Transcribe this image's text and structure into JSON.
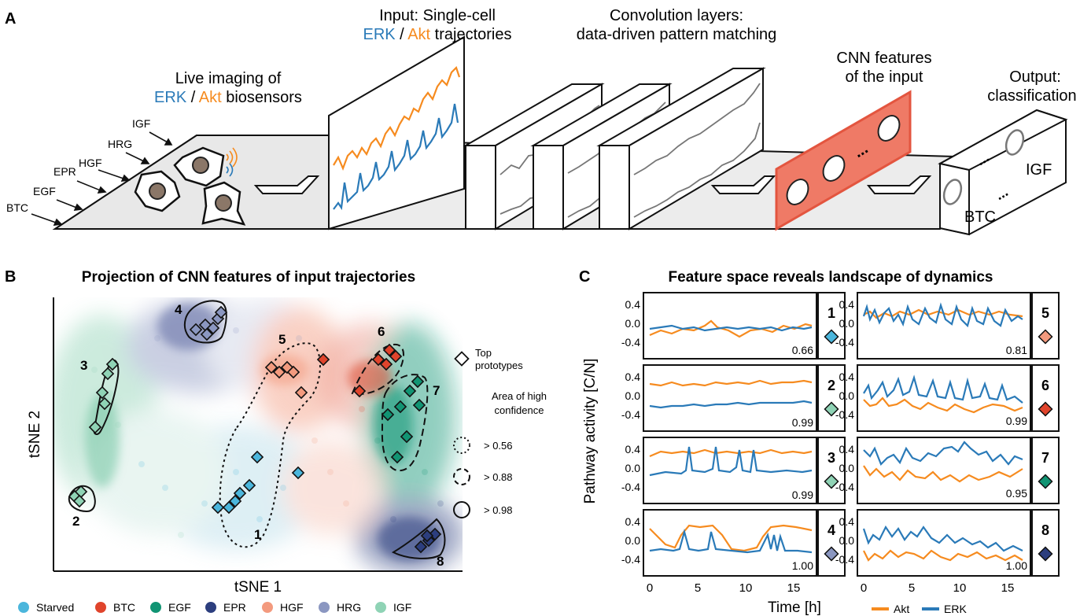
{
  "panel_a": {
    "letter": "A",
    "live_imaging": {
      "line1": "Live imaging of",
      "erk": "ERK",
      "sep": " / ",
      "akt": "Akt",
      "rest": " biosensors"
    },
    "ligands": [
      "IGF",
      "HRG",
      "HGF",
      "EPR",
      "EGF",
      "BTC"
    ],
    "input": {
      "line1": "Input: Single-cell",
      "erk": "ERK",
      "sep": " / ",
      "akt": "Akt",
      "rest": " trajectories"
    },
    "conv": {
      "line1": "Convolution layers:",
      "line2": "data-driven pattern matching"
    },
    "features": {
      "line1": "CNN features",
      "line2": "of the input",
      "dots": "..."
    },
    "output": {
      "line1": "Output:",
      "line2": "classification",
      "igf": "IGF",
      "btc": "BTC",
      "dots": "..."
    }
  },
  "panel_b": {
    "letter": "B",
    "title": "Projection of CNN features of input trajectories",
    "xlabel": "tSNE 1",
    "ylabel": "tSNE 2",
    "cluster_labels": [
      "1",
      "2",
      "3",
      "4",
      "5",
      "6",
      "7",
      "8"
    ],
    "legend": {
      "top": "Top",
      "prototypes": "prototypes",
      "area1": "Area of high",
      "area2": "confidence",
      "levels": [
        "> 0.56",
        "> 0.88",
        "> 0.98"
      ]
    },
    "classes": [
      {
        "name": "Starved",
        "color": "#4bb6dc"
      },
      {
        "name": "BTC",
        "color": "#e0442c"
      },
      {
        "name": "EGF",
        "color": "#119473"
      },
      {
        "name": "EPR",
        "color": "#2c3e7e"
      },
      {
        "name": "HGF",
        "color": "#f39a7e"
      },
      {
        "name": "HRG",
        "color": "#8b97c1"
      },
      {
        "name": "IGF",
        "color": "#8fd3b5"
      }
    ]
  },
  "panel_c": {
    "letter": "C",
    "title": "Feature space reveals landscape of dynamics",
    "ylabel": "Pathway activity [C/N]",
    "xlabel": "Time [h]",
    "yticks": [
      "0.4",
      "0.0",
      "-0.4"
    ],
    "xticks": [
      "0",
      "5",
      "10",
      "15"
    ],
    "legend": [
      "Akt",
      "ERK"
    ],
    "colors": {
      "akt": "#f68b1f",
      "erk": "#2a7ab8"
    },
    "panels": [
      {
        "id": "1",
        "score": "0.66",
        "color": "#4bb6dc"
      },
      {
        "id": "2",
        "score": "0.99",
        "color": "#8fd3b5"
      },
      {
        "id": "3",
        "score": "0.99",
        "color": "#8fd3b5"
      },
      {
        "id": "4",
        "score": "1.00",
        "color": "#8b97c1"
      },
      {
        "id": "5",
        "score": "0.81",
        "color": "#f39a7e"
      },
      {
        "id": "6",
        "score": "0.99",
        "color": "#e0442c"
      },
      {
        "id": "7",
        "score": "0.95",
        "color": "#119473"
      },
      {
        "id": "8",
        "score": "1.00",
        "color": "#2c3e7e"
      }
    ]
  }
}
